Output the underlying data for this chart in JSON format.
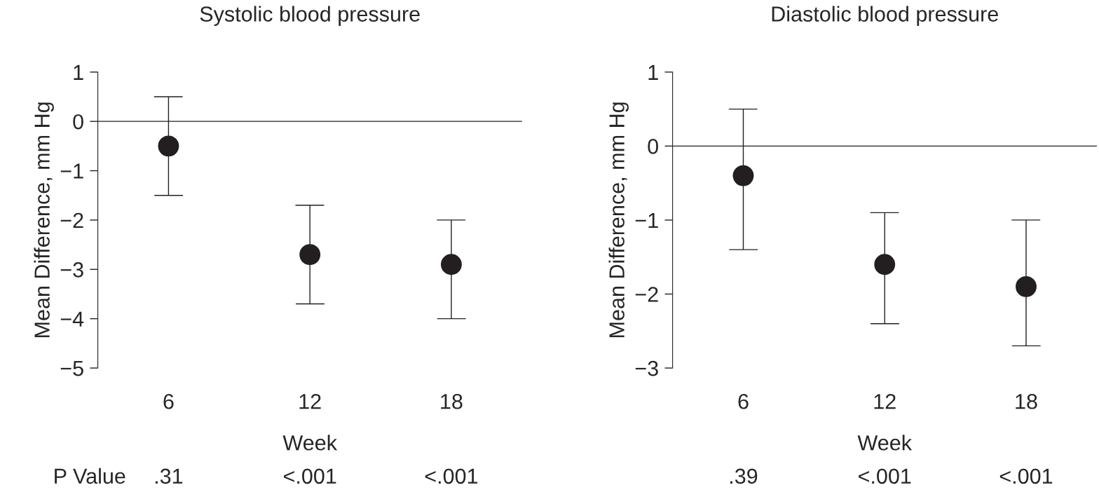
{
  "chart_data": [
    {
      "type": "scatter",
      "title": "Systolic blood pressure",
      "xlabel": "Week",
      "ylabel": "Mean Difference, mm Hg",
      "categories": [
        "6",
        "12",
        "18"
      ],
      "series": [
        {
          "color": "#231f20",
          "values": [
            -0.5,
            -2.7,
            -2.9
          ],
          "errors": [
            [
              -1.5,
              0.5
            ],
            [
              -3.7,
              -1.7
            ],
            [
              -4.0,
              -2.0
            ]
          ]
        }
      ],
      "ylim": [
        -5,
        1
      ],
      "yticks": [
        -5,
        -4,
        -3,
        -2,
        -1,
        0,
        1
      ],
      "ref_lines": [
        {
          "axis": "y",
          "value": 0
        }
      ],
      "marker": "circle",
      "grid": false,
      "annotations": [
        "P Value",
        ".31",
        "<.001",
        "<.001"
      ]
    },
    {
      "type": "scatter",
      "title": "Diastolic blood pressure",
      "xlabel": "Week",
      "ylabel": "Mean Difference, mm Hg",
      "categories": [
        "6",
        "12",
        "18"
      ],
      "series": [
        {
          "color": "#231f20",
          "values": [
            -0.4,
            -1.6,
            -1.9
          ],
          "errors": [
            [
              -1.4,
              0.5
            ],
            [
              -2.4,
              -0.9
            ],
            [
              -2.7,
              -1.0
            ]
          ]
        }
      ],
      "ylim": [
        -3,
        1
      ],
      "yticks": [
        -3,
        -2,
        -1,
        0,
        1
      ],
      "ref_lines": [
        {
          "axis": "y",
          "value": 0
        }
      ],
      "marker": "circle",
      "grid": false,
      "annotations": [
        ".39",
        "<.001",
        "<.001"
      ]
    }
  ]
}
